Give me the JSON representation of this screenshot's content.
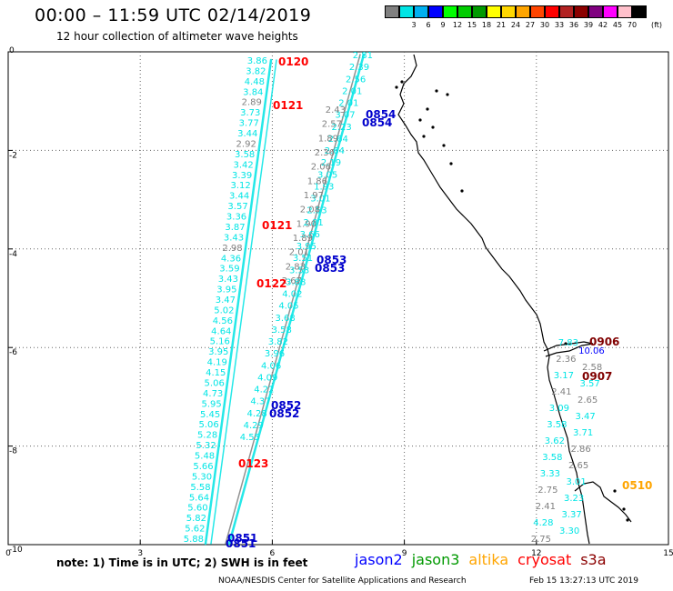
{
  "header": {
    "title": "00:00 – 11:59 UTC 02/14/2019",
    "subtitle": "12 hour collection of altimeter wave heights"
  },
  "color_scale": {
    "unit": "(ft)",
    "stops": [
      {
        "label": "",
        "color": "#808080"
      },
      {
        "label": "3",
        "color": "#00e5e5"
      },
      {
        "label": "6",
        "color": "#00b0f0"
      },
      {
        "label": "9",
        "color": "#0000ff"
      },
      {
        "label": "12",
        "color": "#00ff00"
      },
      {
        "label": "15",
        "color": "#00cc00"
      },
      {
        "label": "18",
        "color": "#009900"
      },
      {
        "label": "21",
        "color": "#ffff00"
      },
      {
        "label": "24",
        "color": "#ffd700"
      },
      {
        "label": "27",
        "color": "#ffa500"
      },
      {
        "label": "30",
        "color": "#ff4500"
      },
      {
        "label": "33",
        "color": "#ff0000"
      },
      {
        "label": "36",
        "color": "#b22222"
      },
      {
        "label": "39",
        "color": "#8b0000"
      },
      {
        "label": "42",
        "color": "#800080"
      },
      {
        "label": "45",
        "color": "#ff00ff"
      },
      {
        "label": "70",
        "color": "#ffc0cb"
      },
      {
        "label": "",
        "color": "#000000"
      }
    ]
  },
  "axes": {
    "x_ticks": [
      "0",
      "3",
      "6",
      "9",
      "12",
      "15"
    ],
    "y_ticks": [
      "0",
      "-2",
      "-4",
      "-6",
      "-8",
      "-10"
    ],
    "x_range": [
      0,
      15
    ],
    "y_range": [
      -10,
      0
    ],
    "grid": "dotted"
  },
  "tracks": {
    "west_cyan": {
      "color": "#00e5e5",
      "values": [
        "3.86",
        "3.82",
        "4.48",
        "3.84",
        "2.89",
        "3.73",
        "3.77",
        "3.44",
        "2.92",
        "3.58",
        "3.42",
        "3.39",
        "3.12",
        "3.44",
        "3.57",
        "3.36",
        "3.87",
        "3.43",
        "2.98",
        "4.36",
        "3.59",
        "3.43",
        "3.95",
        "3.47",
        "5.02",
        "4.56",
        "4.64",
        "5.16",
        "3.95",
        "4.19",
        "4.15",
        "5.06",
        "4.73",
        "5.95",
        "5.45",
        "5.06",
        "5.28",
        "5.32",
        "5.48",
        "5.66",
        "5.30",
        "5.58",
        "5.64",
        "5.60",
        "5.82",
        "5.62",
        "5.88"
      ]
    },
    "mid_cyan_values": [
      "2.81",
      "2.39",
      "2.56",
      "2.01",
      "2.01",
      "3.07",
      "2.23",
      "2.64",
      "2.64",
      "2.19",
      "3.05",
      "1.93",
      "3.01",
      "2.53",
      "2.81",
      "3.66",
      "3.95",
      "3.51",
      "3.53",
      "3.88",
      "4.02",
      "4.05",
      "3.68",
      "3.58",
      "3.82",
      "3.96",
      "4.06",
      "4.09",
      "4.22",
      "4.37",
      "4.28",
      "4.29",
      "4.55"
    ],
    "mid_gray_values": [
      "2.43",
      "2.57",
      "1.89",
      "2.36",
      "2.06",
      "1.86",
      "1.97",
      "2.08",
      "1.90",
      "1.89",
      "2.01",
      "2.83",
      "2.67"
    ],
    "east_values": [
      {
        "v": "7.83",
        "c": "#00e5e5"
      },
      {
        "v": "10.06",
        "c": "#0000ff"
      },
      {
        "v": "2.36",
        "c": "#808080"
      },
      {
        "v": "2.58",
        "c": "#808080"
      },
      {
        "v": "3.17",
        "c": "#00e5e5"
      },
      {
        "v": "3.57",
        "c": "#00e5e5"
      },
      {
        "v": "2.41",
        "c": "#808080"
      },
      {
        "v": "2.65",
        "c": "#808080"
      },
      {
        "v": "3.09",
        "c": "#00e5e5"
      },
      {
        "v": "3.47",
        "c": "#00e5e5"
      },
      {
        "v": "3.58",
        "c": "#00e5e5"
      },
      {
        "v": "3.71",
        "c": "#00e5e5"
      },
      {
        "v": "3.62",
        "c": "#00e5e5"
      },
      {
        "v": "2.86",
        "c": "#808080"
      },
      {
        "v": "3.58",
        "c": "#00e5e5"
      },
      {
        "v": "2.65",
        "c": "#808080"
      },
      {
        "v": "3.33",
        "c": "#00e5e5"
      },
      {
        "v": "3.01",
        "c": "#00e5e5"
      },
      {
        "v": "2.75",
        "c": "#808080"
      },
      {
        "v": "3.23",
        "c": "#00e5e5"
      },
      {
        "v": "2.41",
        "c": "#808080"
      },
      {
        "v": "3.37",
        "c": "#00e5e5"
      },
      {
        "v": "4.28",
        "c": "#00e5e5"
      },
      {
        "v": "3.30",
        "c": "#00e5e5"
      },
      {
        "v": "2.75",
        "c": "#808080"
      }
    ],
    "time_labels": [
      {
        "t": "0120",
        "c": "#ff0000"
      },
      {
        "t": "0121",
        "c": "#ff0000"
      },
      {
        "t": "0121",
        "c": "#ff0000"
      },
      {
        "t": "0122",
        "c": "#ff0000"
      },
      {
        "t": "0123",
        "c": "#ff0000"
      },
      {
        "t": "0854",
        "c": "#0000cc"
      },
      {
        "t": "0854",
        "c": "#0000cc"
      },
      {
        "t": "0853",
        "c": "#0000cc"
      },
      {
        "t": "0853",
        "c": "#0000cc"
      },
      {
        "t": "0852",
        "c": "#0000cc"
      },
      {
        "t": "0852",
        "c": "#0000cc"
      },
      {
        "t": "0851",
        "c": "#0000cc"
      },
      {
        "t": "0851",
        "c": "#0000cc"
      },
      {
        "t": "0906",
        "c": "#800000"
      },
      {
        "t": "0907",
        "c": "#800000"
      },
      {
        "t": "0510",
        "c": "#ffa500"
      }
    ]
  },
  "footer": {
    "note": "note: 1) Time is in UTC; 2) SWH is in feet",
    "legend": [
      {
        "label": "jason2",
        "color": "#0000ff"
      },
      {
        "label": "jason3",
        "color": "#009900"
      },
      {
        "label": "altika",
        "color": "#ffa500"
      },
      {
        "label": "cryosat",
        "color": "#ff0000"
      },
      {
        "label": "s3a",
        "color": "#8b0000"
      }
    ],
    "credit": "NOAA/NESDIS Center for Satellite Applications and Research",
    "timestamp": "Feb 15 13:27:13 UTC 2019"
  }
}
